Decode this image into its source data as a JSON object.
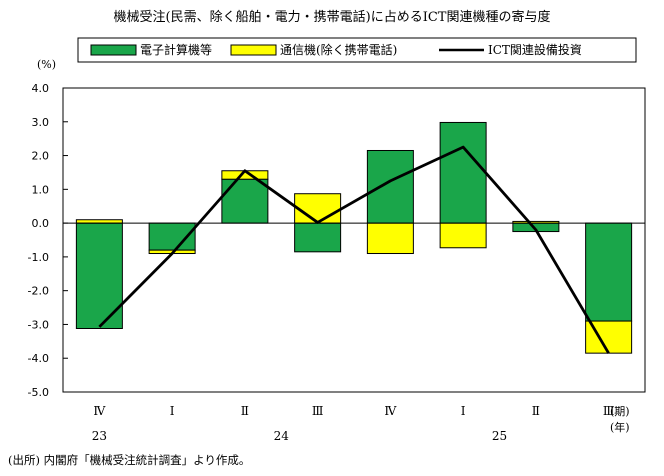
{
  "chart_data": {
    "type": "bar",
    "title": "機械受注(民需、除く船舶・電力・携帯電話)に占めるICT関連機種の寄与度",
    "ylabel": "(%)",
    "ylim": [
      -5.0,
      4.0
    ],
    "yticks": [
      "4.0",
      "3.0",
      "2.0",
      "1.0",
      "0.0",
      "-1.0",
      "-2.0",
      "-3.0",
      "-4.0",
      "-5.0"
    ],
    "ytick_values": [
      4,
      3,
      2,
      1,
      0,
      -1,
      -2,
      -3,
      -4,
      -5
    ],
    "categories": [
      "Ⅳ",
      "Ⅰ",
      "Ⅱ",
      "Ⅲ",
      "Ⅳ",
      "Ⅰ",
      "Ⅱ",
      "Ⅲ"
    ],
    "years": [
      {
        "label": "23",
        "index": 0
      },
      {
        "label": "24",
        "index": 2.5
      },
      {
        "label": "25",
        "index": 5.5
      }
    ],
    "x_unit_quarter": "(期)",
    "x_unit_year": "(年)",
    "stacked": true,
    "grid": false,
    "legend_position": "top",
    "series": [
      {
        "name": "電子計算機等",
        "kind": "bar",
        "color": "#1aa64a",
        "values": [
          -3.12,
          -0.8,
          1.3,
          -0.85,
          2.15,
          2.98,
          -0.25,
          -2.9
        ]
      },
      {
        "name": "通信機(除く携帯電話)",
        "kind": "bar",
        "color": "#ffff00",
        "values": [
          0.1,
          -0.1,
          0.25,
          0.87,
          -0.9,
          -0.73,
          0.05,
          -0.95
        ]
      },
      {
        "name": "ICT関連設備投資",
        "kind": "line",
        "color": "#000000",
        "values": [
          -3.07,
          -0.9,
          1.55,
          0.02,
          1.25,
          2.25,
          -0.2,
          -3.85
        ]
      }
    ]
  },
  "source": "(出所) 内閣府「機械受注統計調査」より作成。"
}
